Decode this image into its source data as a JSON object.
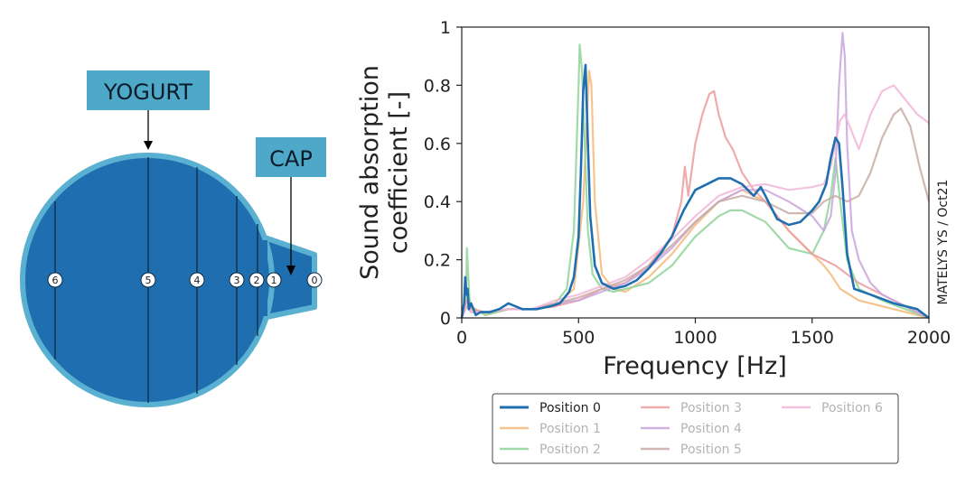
{
  "diagram": {
    "yogurt_label": "YOGURT",
    "cap_label": "CAP",
    "markers": [
      "6",
      "5",
      "4",
      "3",
      "2",
      "1",
      "0"
    ],
    "colors": {
      "body": "#1f6fb0",
      "rim": "#5ab0d0",
      "label_bg": "#4da9c7"
    }
  },
  "watermark": "MATELYS YS / Oct21",
  "chart_data": {
    "type": "line",
    "xlabel": "Frequency [Hz]",
    "ylabel_line1": "Sound absorption",
    "ylabel_line2": "coefficient [-]",
    "xlim": [
      0,
      2000
    ],
    "ylim": [
      0,
      1
    ],
    "xticks": [
      0,
      500,
      1000,
      1500,
      2000
    ],
    "yticks": [
      0,
      0.2,
      0.4,
      0.6,
      0.8,
      1
    ],
    "ytick_labels": [
      "0",
      "0.2",
      "0.4",
      "0.6",
      "0.8",
      "1"
    ],
    "grid": false,
    "legend_position": "bottom",
    "series": [
      {
        "name": "Position 0",
        "color": "#1f6fb0",
        "opacity": 1.0,
        "width": 2.6,
        "x": [
          0,
          10,
          15,
          20,
          25,
          30,
          40,
          60,
          80,
          120,
          160,
          200,
          260,
          320,
          380,
          420,
          460,
          480,
          500,
          510,
          520,
          530,
          540,
          550,
          570,
          600,
          650,
          700,
          750,
          800,
          850,
          900,
          950,
          1000,
          1050,
          1100,
          1150,
          1200,
          1250,
          1280,
          1300,
          1350,
          1400,
          1450,
          1500,
          1530,
          1560,
          1580,
          1600,
          1615,
          1630,
          1650,
          1680,
          1750,
          1850,
          1950,
          2000
        ],
        "y": [
          0,
          0.05,
          0.14,
          0.08,
          0.1,
          0.03,
          0.05,
          0.01,
          0.02,
          0.02,
          0.03,
          0.05,
          0.03,
          0.03,
          0.04,
          0.05,
          0.09,
          0.14,
          0.28,
          0.5,
          0.78,
          0.87,
          0.6,
          0.35,
          0.18,
          0.12,
          0.1,
          0.11,
          0.13,
          0.17,
          0.22,
          0.28,
          0.37,
          0.44,
          0.46,
          0.48,
          0.48,
          0.46,
          0.42,
          0.45,
          0.42,
          0.34,
          0.32,
          0.33,
          0.37,
          0.4,
          0.46,
          0.55,
          0.62,
          0.6,
          0.45,
          0.22,
          0.1,
          0.08,
          0.05,
          0.03,
          0.0
        ]
      },
      {
        "name": "Position 1",
        "color": "#f5b97a",
        "opacity": 0.85,
        "width": 2.2,
        "x": [
          0,
          20,
          40,
          100,
          200,
          300,
          400,
          480,
          520,
          545,
          555,
          570,
          600,
          650,
          700,
          800,
          900,
          1000,
          1100,
          1200,
          1300,
          1400,
          1500,
          1550,
          1580,
          1620,
          1700,
          1800,
          1900,
          2000
        ],
        "y": [
          0,
          0.1,
          0.04,
          0.01,
          0.03,
          0.03,
          0.04,
          0.1,
          0.4,
          0.85,
          0.8,
          0.4,
          0.15,
          0.1,
          0.09,
          0.14,
          0.22,
          0.32,
          0.4,
          0.44,
          0.4,
          0.3,
          0.22,
          0.18,
          0.15,
          0.1,
          0.06,
          0.04,
          0.02,
          0.0
        ]
      },
      {
        "name": "Position 2",
        "color": "#8fd49a",
        "opacity": 0.85,
        "width": 2.2,
        "x": [
          0,
          18,
          22,
          35,
          100,
          200,
          300,
          400,
          450,
          480,
          490,
          500,
          505,
          515,
          540,
          560,
          600,
          650,
          700,
          800,
          900,
          1000,
          1100,
          1150,
          1200,
          1300,
          1400,
          1500,
          1550,
          1580,
          1600,
          1620,
          1650,
          1700,
          1800,
          1900,
          2000
        ],
        "y": [
          0,
          0.05,
          0.24,
          0.04,
          0.01,
          0.03,
          0.03,
          0.05,
          0.1,
          0.3,
          0.55,
          0.8,
          0.94,
          0.85,
          0.3,
          0.15,
          0.1,
          0.09,
          0.1,
          0.12,
          0.18,
          0.28,
          0.35,
          0.37,
          0.37,
          0.33,
          0.24,
          0.22,
          0.3,
          0.42,
          0.55,
          0.4,
          0.2,
          0.1,
          0.06,
          0.03,
          0.0
        ]
      },
      {
        "name": "Position 3",
        "color": "#ec9c9c",
        "opacity": 0.85,
        "width": 2.2,
        "x": [
          0,
          20,
          40,
          100,
          200,
          300,
          400,
          500,
          600,
          700,
          800,
          900,
          940,
          955,
          970,
          1000,
          1030,
          1060,
          1080,
          1100,
          1130,
          1160,
          1200,
          1250,
          1300,
          1400,
          1500,
          1600,
          1700,
          1800,
          1900,
          2000
        ],
        "y": [
          0,
          0.06,
          0.03,
          0.02,
          0.03,
          0.03,
          0.04,
          0.06,
          0.1,
          0.12,
          0.18,
          0.28,
          0.4,
          0.52,
          0.42,
          0.6,
          0.7,
          0.77,
          0.78,
          0.7,
          0.62,
          0.58,
          0.5,
          0.44,
          0.4,
          0.3,
          0.22,
          0.18,
          0.12,
          0.08,
          0.04,
          0.0
        ]
      },
      {
        "name": "Position 4",
        "color": "#c9a6dd",
        "opacity": 0.85,
        "width": 2.2,
        "x": [
          0,
          20,
          40,
          100,
          200,
          300,
          400,
          500,
          600,
          700,
          800,
          900,
          1000,
          1100,
          1200,
          1300,
          1400,
          1500,
          1550,
          1580,
          1600,
          1615,
          1630,
          1640,
          1650,
          1670,
          1700,
          1750,
          1800,
          1900,
          2000
        ],
        "y": [
          0,
          0.04,
          0.02,
          0.02,
          0.03,
          0.03,
          0.05,
          0.06,
          0.09,
          0.12,
          0.17,
          0.24,
          0.33,
          0.4,
          0.44,
          0.44,
          0.4,
          0.35,
          0.3,
          0.35,
          0.5,
          0.8,
          0.98,
          0.9,
          0.6,
          0.3,
          0.2,
          0.12,
          0.08,
          0.04,
          0.0
        ]
      },
      {
        "name": "Position 5",
        "color": "#c9aca5",
        "opacity": 0.85,
        "width": 2.2,
        "x": [
          0,
          20,
          40,
          100,
          200,
          300,
          400,
          500,
          600,
          700,
          800,
          900,
          1000,
          1100,
          1200,
          1300,
          1400,
          1500,
          1550,
          1600,
          1650,
          1700,
          1750,
          1800,
          1850,
          1880,
          1920,
          1960,
          2000
        ],
        "y": [
          0,
          0.04,
          0.02,
          0.02,
          0.03,
          0.03,
          0.05,
          0.07,
          0.1,
          0.13,
          0.18,
          0.25,
          0.33,
          0.4,
          0.42,
          0.4,
          0.36,
          0.36,
          0.4,
          0.42,
          0.4,
          0.42,
          0.5,
          0.62,
          0.7,
          0.72,
          0.66,
          0.52,
          0.4
        ]
      },
      {
        "name": "Position 6",
        "color": "#f1b7d9",
        "opacity": 0.85,
        "width": 2.2,
        "x": [
          0,
          20,
          40,
          100,
          200,
          300,
          400,
          500,
          600,
          700,
          800,
          900,
          1000,
          1100,
          1200,
          1300,
          1400,
          1500,
          1550,
          1580,
          1600,
          1620,
          1640,
          1700,
          1750,
          1800,
          1850,
          1900,
          1950,
          2000
        ],
        "y": [
          0,
          0.04,
          0.02,
          0.02,
          0.03,
          0.03,
          0.06,
          0.08,
          0.11,
          0.14,
          0.2,
          0.27,
          0.35,
          0.42,
          0.45,
          0.46,
          0.44,
          0.45,
          0.46,
          0.52,
          0.6,
          0.68,
          0.7,
          0.58,
          0.7,
          0.78,
          0.8,
          0.75,
          0.7,
          0.67
        ]
      }
    ]
  }
}
